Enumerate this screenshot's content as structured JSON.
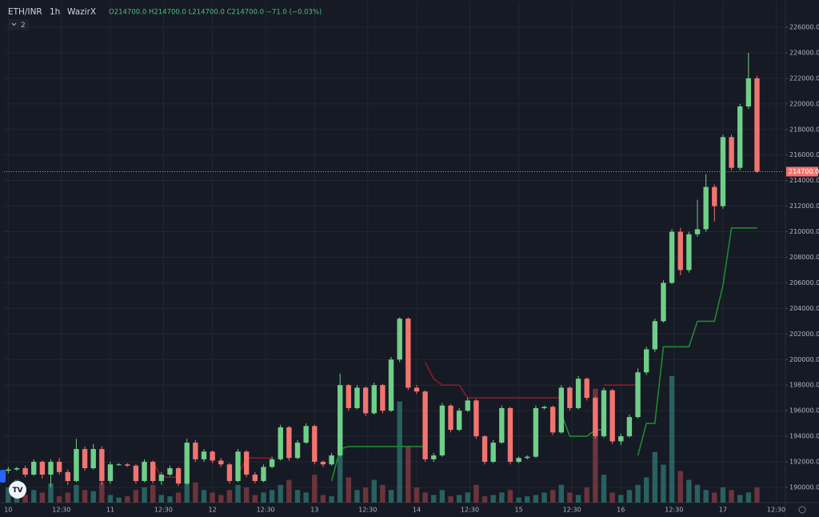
{
  "chart_data": {
    "type": "candlestick",
    "header": {
      "symbol": "ETH/INR",
      "interval": "1h",
      "exchange": "WazirX",
      "ohlc": "O214700.0 H214700.0 L214700.0 C214700.0 −71.0 (−0.03%)",
      "indicators": "2"
    },
    "up_color": "#6fcf88",
    "down_color": "#f2746f",
    "grid": true,
    "xlim": [
      -1,
      182.3
    ],
    "ylim": [
      188810,
      227940
    ],
    "xticks": [
      {
        "value": 0,
        "label": "10"
      },
      {
        "value": 12.5,
        "label": "12:30"
      },
      {
        "value": 24,
        "label": "11"
      },
      {
        "value": 36.5,
        "label": "12:30"
      },
      {
        "value": 48,
        "label": "12"
      },
      {
        "value": 60.5,
        "label": "12:30"
      },
      {
        "value": 72,
        "label": "13"
      },
      {
        "value": 84.5,
        "label": "12:30"
      },
      {
        "value": 96,
        "label": "14"
      },
      {
        "value": 108.5,
        "label": "12:30"
      },
      {
        "value": 120,
        "label": "15"
      },
      {
        "value": 132.5,
        "label": "12:30"
      },
      {
        "value": 144,
        "label": "16"
      },
      {
        "value": 156.5,
        "label": "12:30"
      },
      {
        "value": 168,
        "label": "17"
      },
      {
        "value": 180.5,
        "label": "12:30"
      }
    ],
    "yticks": [
      {
        "value": 190000,
        "label": "190000.0"
      },
      {
        "value": 192000,
        "label": "192000.0"
      },
      {
        "value": 194000,
        "label": "194000.0"
      },
      {
        "value": 196000,
        "label": "196000.0"
      },
      {
        "value": 198000,
        "label": "198000.0"
      },
      {
        "value": 200000,
        "label": "200000.0"
      },
      {
        "value": 202000,
        "label": "202000.0"
      },
      {
        "value": 204000,
        "label": "204000.0"
      },
      {
        "value": 206000,
        "label": "206000.0"
      },
      {
        "value": 208000,
        "label": "208000.0"
      },
      {
        "value": 210000,
        "label": "210000.0"
      },
      {
        "value": 212000,
        "label": "212000.0"
      },
      {
        "value": 214000,
        "label": "214000.0"
      },
      {
        "value": 216000,
        "label": "216000.0"
      },
      {
        "value": 218000,
        "label": "218000.0"
      },
      {
        "value": 220000,
        "label": "220000.0"
      },
      {
        "value": 222000,
        "label": "222000.0"
      },
      {
        "value": 224000,
        "label": "224000.0"
      },
      {
        "value": 226000,
        "label": "226000.0"
      }
    ],
    "last_price": {
      "value": 214700,
      "label": "214700.0"
    },
    "x": [
      0,
      2,
      4,
      6,
      8,
      10,
      12,
      14,
      16,
      18,
      20,
      22,
      24,
      26,
      28,
      30,
      32,
      34,
      36,
      38,
      40,
      42,
      44,
      46,
      48,
      50,
      52,
      54,
      56,
      58,
      60,
      62,
      64,
      66,
      68,
      70,
      72,
      74,
      76,
      78,
      80,
      82,
      84,
      86,
      88,
      90,
      92,
      94,
      96,
      98,
      100,
      102,
      104,
      106,
      108,
      110,
      112,
      114,
      116,
      118,
      120,
      122,
      124,
      126,
      128,
      130,
      132,
      134,
      136,
      138,
      140,
      142,
      144,
      146,
      148,
      150,
      152,
      154,
      156,
      158,
      160,
      162,
      164,
      166,
      168,
      170,
      172,
      174,
      176
    ],
    "ohlc": [
      [
        191300,
        191600,
        191100,
        191400
      ],
      [
        191400,
        191600,
        191300,
        191500
      ],
      [
        191500,
        191700,
        190800,
        191000
      ],
      [
        191000,
        192200,
        190900,
        192000
      ],
      [
        192000,
        192100,
        190700,
        191000
      ],
      [
        191000,
        192200,
        190000,
        192000
      ],
      [
        192000,
        192300,
        191000,
        191200
      ],
      [
        191200,
        191400,
        190200,
        190500
      ],
      [
        190500,
        193800,
        190400,
        193000
      ],
      [
        193000,
        193200,
        191300,
        191500
      ],
      [
        191500,
        193400,
        191400,
        193000
      ],
      [
        193000,
        193200,
        190200,
        190500
      ],
      [
        190500,
        192000,
        190300,
        191800
      ],
      [
        191800,
        191900,
        191700,
        191800
      ],
      [
        191800,
        191900,
        191600,
        191700
      ],
      [
        191700,
        191800,
        190300,
        190500
      ],
      [
        190500,
        192200,
        190400,
        192000
      ],
      [
        192000,
        192100,
        190300,
        190500
      ],
      [
        190500,
        191200,
        190200,
        191000
      ],
      [
        191000,
        191700,
        190900,
        191500
      ],
      [
        191500,
        191600,
        190100,
        190300
      ],
      [
        190300,
        193800,
        190200,
        193500
      ],
      [
        193500,
        193700,
        192000,
        192200
      ],
      [
        192200,
        193000,
        192000,
        192800
      ],
      [
        192800,
        192900,
        191900,
        192100
      ],
      [
        192100,
        192300,
        191600,
        191800
      ],
      [
        191800,
        191900,
        190300,
        190500
      ],
      [
        190500,
        193000,
        190400,
        192800
      ],
      [
        192800,
        192900,
        190800,
        191000
      ],
      [
        191000,
        191200,
        190300,
        190500
      ],
      [
        190500,
        191800,
        190400,
        191600
      ],
      [
        191600,
        192400,
        191500,
        192200
      ],
      [
        192200,
        194900,
        192100,
        194700
      ],
      [
        194700,
        194800,
        192100,
        192300
      ],
      [
        192300,
        193700,
        192200,
        193500
      ],
      [
        193500,
        195000,
        193400,
        194800
      ],
      [
        194800,
        194900,
        191800,
        192000
      ],
      [
        192000,
        192100,
        191600,
        191800
      ],
      [
        191800,
        192700,
        191700,
        192500
      ],
      [
        192500,
        198900,
        192400,
        198000
      ],
      [
        198000,
        198100,
        196000,
        196200
      ],
      [
        196200,
        198000,
        196100,
        197800
      ],
      [
        197800,
        197900,
        195600,
        195800
      ],
      [
        195800,
        198200,
        195700,
        198000
      ],
      [
        198000,
        198100,
        195800,
        196000
      ],
      [
        196000,
        200200,
        195900,
        200000
      ],
      [
        200000,
        203300,
        199800,
        203200
      ],
      [
        203200,
        203300,
        197600,
        197800
      ],
      [
        197800,
        198000,
        197300,
        197500
      ],
      [
        197500,
        197600,
        192000,
        192200
      ],
      [
        192200,
        192700,
        192000,
        192500
      ],
      [
        192500,
        196600,
        192400,
        196400
      ],
      [
        196400,
        196500,
        194300,
        194500
      ],
      [
        194500,
        196200,
        194400,
        196000
      ],
      [
        196000,
        197000,
        195900,
        196800
      ],
      [
        196800,
        196900,
        193800,
        194000
      ],
      [
        194000,
        194100,
        191800,
        192000
      ],
      [
        192000,
        193700,
        191900,
        193500
      ],
      [
        193500,
        196400,
        193400,
        196200
      ],
      [
        196200,
        196300,
        191800,
        192000
      ],
      [
        192000,
        192400,
        191900,
        192300
      ],
      [
        192300,
        192500,
        192200,
        192400
      ],
      [
        192400,
        196400,
        192300,
        196200
      ],
      [
        196200,
        196400,
        196100,
        196300
      ],
      [
        196300,
        196400,
        194100,
        194300
      ],
      [
        194300,
        198000,
        194200,
        197800
      ],
      [
        197800,
        197900,
        196000,
        196200
      ],
      [
        196200,
        198700,
        196100,
        198500
      ],
      [
        198500,
        198600,
        196800,
        197000
      ],
      [
        197000,
        197100,
        193800,
        194000
      ],
      [
        194000,
        197800,
        193900,
        197600
      ],
      [
        197600,
        197700,
        193400,
        193600
      ],
      [
        193600,
        194200,
        193300,
        194000
      ],
      [
        194000,
        195700,
        193900,
        195500
      ],
      [
        195500,
        199300,
        195400,
        199000
      ],
      [
        199000,
        201000,
        198800,
        200800
      ],
      [
        200800,
        203200,
        200600,
        203000
      ],
      [
        203000,
        206200,
        202900,
        206000
      ],
      [
        206000,
        210200,
        205900,
        210000
      ],
      [
        210000,
        210300,
        206600,
        207000
      ],
      [
        207000,
        210000,
        206800,
        209800
      ],
      [
        209800,
        212500,
        209600,
        210200
      ],
      [
        210200,
        214500,
        210000,
        213500
      ],
      [
        213500,
        213700,
        210800,
        212000
      ],
      [
        212000,
        217600,
        211800,
        217400
      ],
      [
        217400,
        217600,
        214800,
        215000
      ],
      [
        215000,
        220000,
        214800,
        219800
      ],
      [
        219800,
        224000,
        219600,
        222000
      ],
      [
        222000,
        222200,
        214600,
        214700
      ]
    ],
    "volume": [
      12,
      18,
      6,
      10,
      8,
      15,
      5,
      8,
      14,
      10,
      9,
      16,
      6,
      4,
      5,
      10,
      12,
      14,
      6,
      5,
      8,
      20,
      16,
      10,
      8,
      6,
      10,
      14,
      12,
      6,
      8,
      10,
      14,
      18,
      10,
      8,
      22,
      6,
      5,
      55,
      20,
      10,
      12,
      18,
      14,
      10,
      80,
      45,
      12,
      8,
      6,
      10,
      5,
      6,
      8,
      14,
      5,
      6,
      8,
      10,
      4,
      5,
      6,
      8,
      10,
      14,
      8,
      6,
      12,
      90,
      22,
      8,
      6,
      10,
      14,
      20,
      40,
      30,
      100,
      25,
      18,
      14,
      10,
      8,
      12,
      10,
      6,
      8,
      12
    ],
    "vlim": [
      0,
      100
    ],
    "trend": [
      {
        "color": "#1e8a2e",
        "values": [
          null,
          null,
          null,
          null,
          null,
          null,
          null,
          null,
          null,
          null,
          null,
          null,
          null,
          null,
          null,
          null,
          null,
          null,
          null,
          null,
          null,
          null,
          null,
          null,
          null,
          null,
          null,
          null,
          null,
          null,
          null,
          null,
          null,
          null,
          null,
          null,
          null,
          null,
          190500,
          193000,
          193200,
          193200,
          193200,
          193200,
          193200,
          193200,
          193200,
          193200,
          193200,
          193200,
          null,
          null,
          null,
          null,
          null,
          null,
          null,
          null,
          null,
          null,
          null,
          null,
          null,
          null,
          null,
          195800,
          194000,
          194000,
          194000,
          194500,
          194500,
          null,
          null,
          null,
          192500,
          195000,
          195000,
          201000,
          201000,
          201000,
          201000,
          203000,
          203000,
          203000,
          205800,
          210300,
          210300,
          210300,
          210300
        ]
      },
      {
        "color": "#8a1c24",
        "values": [
          null,
          null,
          null,
          null,
          null,
          null,
          null,
          null,
          null,
          null,
          null,
          null,
          null,
          null,
          null,
          null,
          null,
          192000,
          190800,
          190800,
          190800,
          null,
          null,
          null,
          null,
          null,
          null,
          191000,
          192300,
          192300,
          192300,
          192300,
          null,
          null,
          null,
          null,
          null,
          null,
          null,
          null,
          null,
          null,
          null,
          null,
          null,
          null,
          null,
          null,
          null,
          199800,
          198500,
          198000,
          198000,
          198000,
          197000,
          197000,
          197000,
          197000,
          197000,
          197000,
          197000,
          197000,
          197000,
          197000,
          197000,
          197000,
          null,
          null,
          null,
          null,
          198000,
          198000,
          198000,
          198000,
          198000,
          null,
          null,
          null,
          null,
          null,
          null,
          null,
          null,
          null,
          null,
          null,
          null,
          null,
          null
        ]
      }
    ]
  }
}
